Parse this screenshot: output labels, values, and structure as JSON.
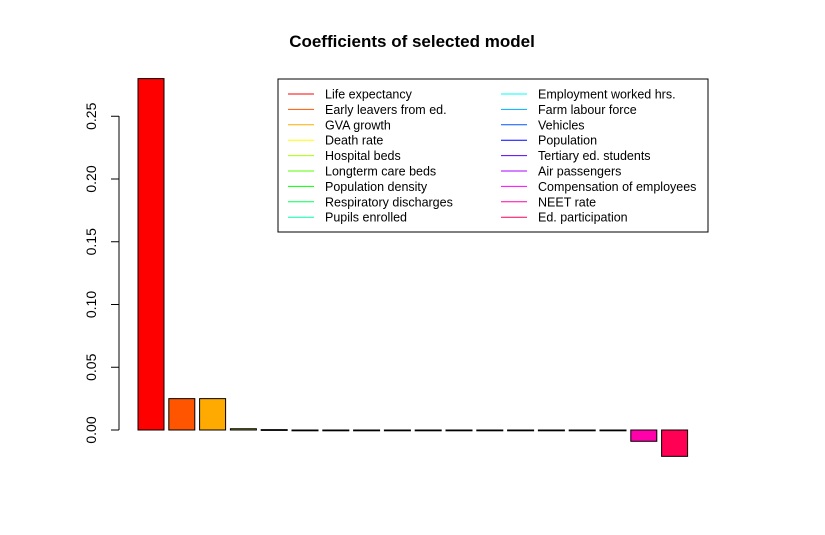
{
  "chart_data": {
    "type": "bar",
    "title": "Coefficients of selected model",
    "xlabel": "",
    "ylabel": "",
    "ylim": [
      -0.023,
      0.28
    ],
    "yticks": [
      0.0,
      0.05,
      0.1,
      0.15,
      0.2,
      0.25
    ],
    "ytick_labels": [
      "0.00",
      "0.05",
      "0.10",
      "0.15",
      "0.20",
      "0.25"
    ],
    "grid": false,
    "legend_position": "top-right",
    "legend_columns": 2,
    "categories": [
      "Life expectancy",
      "Early leavers from ed.",
      "GVA growth",
      "Death rate",
      "Hospital beds",
      "Longterm care beds",
      "Population density",
      "Respiratory discharges",
      "Pupils enrolled",
      "Employment worked hrs.",
      "Farm labour force",
      "Vehicles",
      "Population",
      "Tertiary ed. students",
      "Air passengers",
      "Compensation of employees",
      "NEET rate",
      "Ed. participation"
    ],
    "values": [
      0.28,
      0.025,
      0.025,
      0.001,
      0.0003,
      0,
      0,
      0,
      0,
      0,
      0,
      0,
      0,
      0,
      0,
      0,
      -0.009,
      -0.021
    ],
    "colors": [
      "#FF0000",
      "#FF5500",
      "#FFAA00",
      "#FFFF00",
      "#AAFF00",
      "#55FF00",
      "#00FF00",
      "#00FF55",
      "#00FFAA",
      "#00FFFF",
      "#00AAFF",
      "#0055FF",
      "#0000FF",
      "#5500FF",
      "#AA00FF",
      "#FF00FF",
      "#FF00AA",
      "#FF0055"
    ],
    "bar_border_color": "#000000"
  }
}
